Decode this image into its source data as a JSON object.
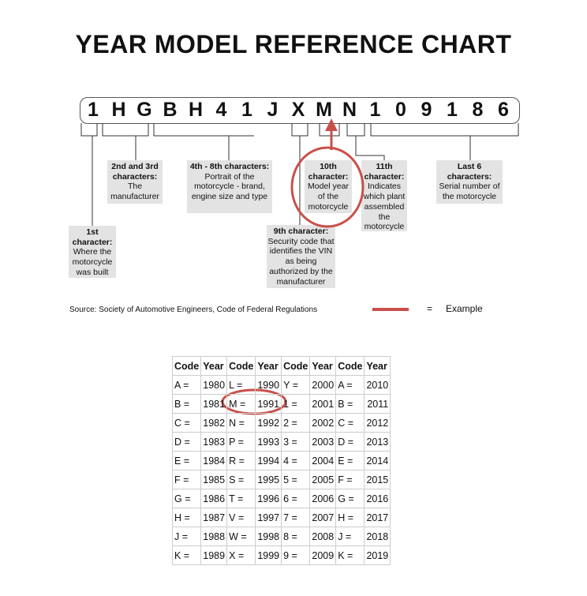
{
  "title": "YEAR MODEL REFERENCE CHART",
  "vin": [
    "1",
    "H",
    "G",
    "B",
    "H",
    "4",
    "1",
    "J",
    "X",
    "M",
    "N",
    "1",
    "0",
    "9",
    "1",
    "8",
    "6"
  ],
  "labels": [
    {
      "head": "1st character:",
      "body": "Where the motorcycle was built"
    },
    {
      "head": "2nd and 3rd characters:",
      "body": "The manufacturer"
    },
    {
      "head": "4th - 8th characters:",
      "body": "Portrait of the motorcycle - brand, engine size and type"
    },
    {
      "head": "9th character:",
      "body": "Security code that identifies the VIN as being authorized by the manufacturer"
    },
    {
      "head": "10th character:",
      "body": "Model year of the motorcycle"
    },
    {
      "head": "11th character:",
      "body": "Indicates which plant assembled the motorcycle"
    },
    {
      "head": "Last 6 characters:",
      "body": "Serial number of the motorcycle"
    }
  ],
  "source": "Source:  Society of Automotive Engineers, Code of Federal Regulations",
  "legend": {
    "equals": "=",
    "label": "Example",
    "color": "#c9504a"
  },
  "table": {
    "headers": [
      "Code",
      "Year",
      "Code",
      "Year",
      "Code",
      "Year",
      "Code",
      "Year"
    ],
    "rows": [
      [
        "A =",
        "1980",
        "L =",
        "1990",
        "Y =",
        "2000",
        "A =",
        "2010"
      ],
      [
        "B =",
        "1981",
        "M =",
        "1991",
        "1 =",
        "2001",
        "B =",
        "2011"
      ],
      [
        "C =",
        "1982",
        "N =",
        "1992",
        "2 =",
        "2002",
        "C =",
        "2012"
      ],
      [
        "D =",
        "1983",
        "P =",
        "1993",
        "3 =",
        "2003",
        "D =",
        "2013"
      ],
      [
        "E =",
        "1984",
        "R =",
        "1994",
        "4 =",
        "2004",
        "E =",
        "2014"
      ],
      [
        "F =",
        "1985",
        "S =",
        "1995",
        "5 =",
        "2005",
        "F =",
        "2015"
      ],
      [
        "G =",
        "1986",
        "T =",
        "1996",
        "6 =",
        "2006",
        "G =",
        "2016"
      ],
      [
        "H =",
        "1987",
        "V =",
        "1997",
        "7 =",
        "2007",
        "H =",
        "2017"
      ],
      [
        "J =",
        "1988",
        "W =",
        "1998",
        "8 =",
        "2008",
        "J =",
        "2018"
      ],
      [
        "K =",
        "1989",
        "X =",
        "1999",
        "9 =",
        "2009",
        "K =",
        "2019"
      ]
    ]
  }
}
